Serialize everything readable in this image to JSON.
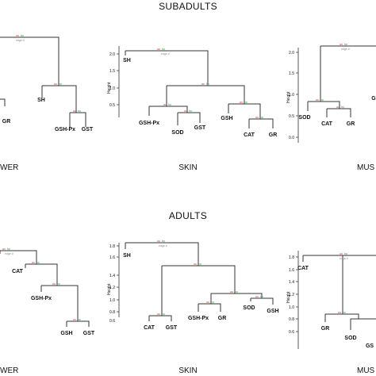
{
  "sections": {
    "top_title": "SUBADULTS",
    "bottom_title": "ADULTS"
  },
  "panels": {
    "liver_label": "WER",
    "skin_label": "SKIN",
    "muscle_label": "MUS",
    "liver_label_2": "WER",
    "skin_label_2": "SKIN",
    "muscle_label_2": "MUS"
  },
  "axis": {
    "ylabel": "Height"
  },
  "node_text": {
    "au": "au",
    "bp": "bp",
    "edge": "edge #"
  },
  "dendrograms": {
    "sub_liver": {
      "leaves": [
        "SH",
        "GR",
        "GSH-Px",
        "GST"
      ]
    },
    "sub_skin": {
      "ticks": [
        "2.0",
        "1.5",
        "1.0",
        "0.5"
      ],
      "leaves": [
        "SH",
        "GSH-Px",
        "SOD",
        "GST",
        "GSH",
        "CAT",
        "GR"
      ]
    },
    "sub_muscle": {
      "ticks": [
        "2.0",
        "1.5",
        "1.0",
        "0.5",
        "0.0"
      ],
      "leaves": [
        "SOD",
        "CAT",
        "GR",
        "G"
      ]
    },
    "ad_liver": {
      "leaves": [
        "CAT",
        "GSH-Px",
        "GSH",
        "GST"
      ]
    },
    "ad_skin": {
      "ticks": [
        "1.8",
        "1.6",
        "1.4",
        "1.2",
        "1.0",
        "0.8",
        "0.6"
      ],
      "leaves": [
        "SH",
        "CAT",
        "GST",
        "GSH-Px",
        "GR",
        "SOD",
        "GSH"
      ]
    },
    "ad_muscle": {
      "ticks": [
        "1.8",
        "1.6",
        "1.4",
        "1.2",
        "1.0",
        "0.8",
        "0.6"
      ],
      "leaves": [
        "CAT",
        "GR",
        "SOD",
        "GS"
      ]
    }
  }
}
